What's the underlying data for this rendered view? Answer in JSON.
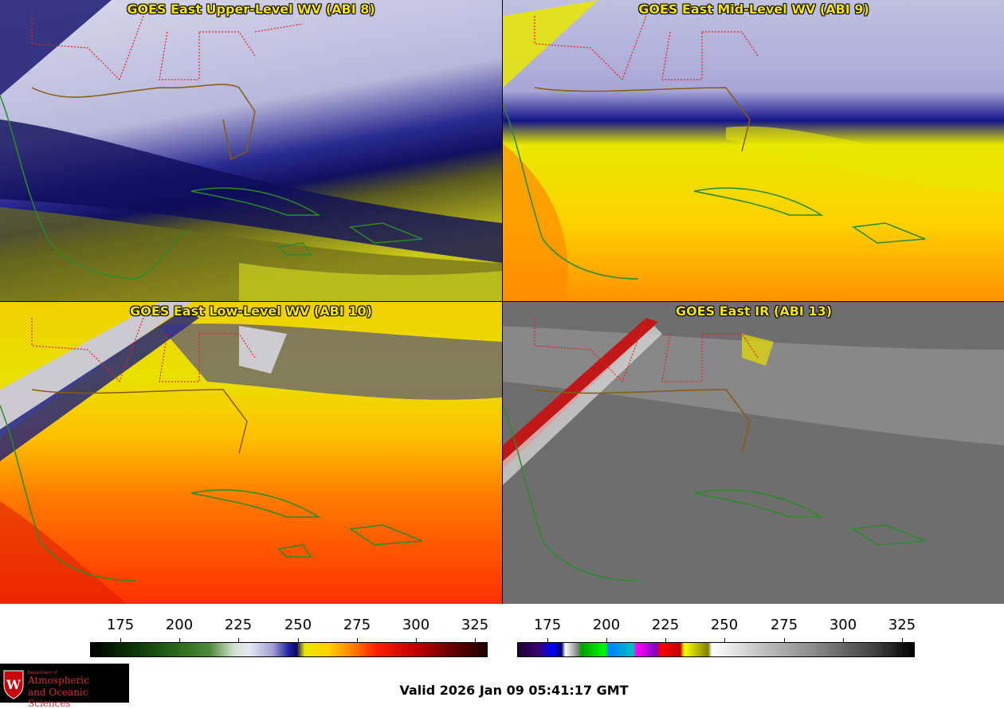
{
  "panels": [
    {
      "id": "tl",
      "title": "GOES East Upper-Level WV (ABI 8)"
    },
    {
      "id": "tr",
      "title": "GOES East Mid-Level WV (ABI 9)"
    },
    {
      "id": "bl",
      "title": "GOES East Low-Level WV (ABI 10)"
    },
    {
      "id": "br",
      "title": "GOES East IR (ABI 13)"
    }
  ],
  "colorbars": {
    "wv": {
      "ticks": [
        "175",
        "200",
        "225",
        "250",
        "275",
        "300",
        "325"
      ]
    },
    "ir": {
      "ticks": [
        "175",
        "200",
        "225",
        "250",
        "275",
        "300",
        "325"
      ]
    }
  },
  "valid_time": "Valid 2026 Jan 09 05:41:17 GMT",
  "logo": {
    "small": "Department of",
    "line1": "Atmospheric",
    "line2": "and Oceanic Sciences",
    "initial": "W"
  }
}
